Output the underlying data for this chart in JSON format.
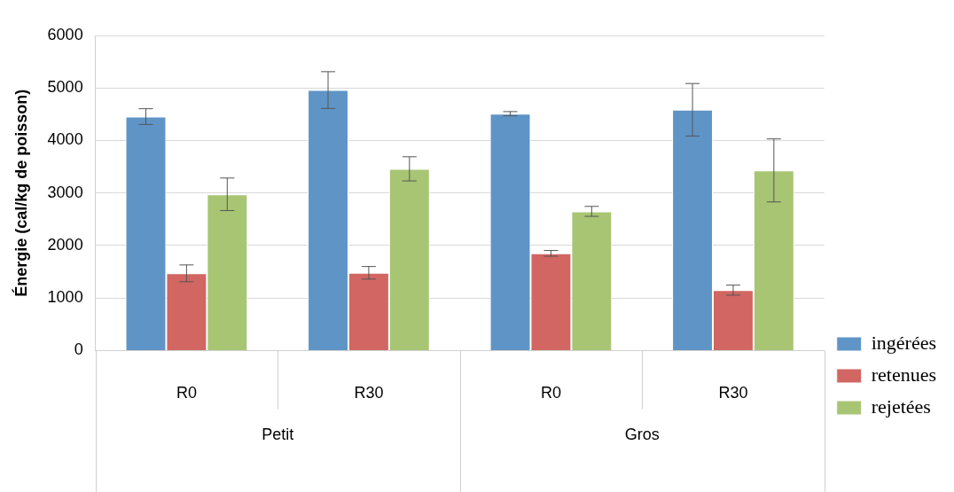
{
  "chart_data": {
    "type": "bar",
    "ylabel": "Énergie (cal/kg de poisson)",
    "categories": [
      "R0",
      "R30",
      "R0",
      "R30"
    ],
    "annotations": [
      "Petit",
      "Gros"
    ],
    "series": [
      {
        "name": "ingérées",
        "color": "#5f94c6",
        "values": [
          4455,
          4960,
          4510,
          4585
        ],
        "errors": [
          150,
          350,
          40,
          500
        ]
      },
      {
        "name": "retenues",
        "color": "#d16662",
        "values": [
          1470,
          1480,
          1850,
          1150
        ],
        "errors": [
          160,
          120,
          55,
          95
        ]
      },
      {
        "name": "rejetées",
        "color": "#a8c574",
        "values": [
          2975,
          3460,
          2650,
          3430
        ],
        "errors": [
          310,
          230,
          95,
          600
        ]
      }
    ],
    "ylim": [
      0,
      6000
    ],
    "yticks": [
      0,
      1000,
      2000,
      3000,
      4000,
      5000,
      6000
    ],
    "grid": "y",
    "legend": "bottom right"
  }
}
